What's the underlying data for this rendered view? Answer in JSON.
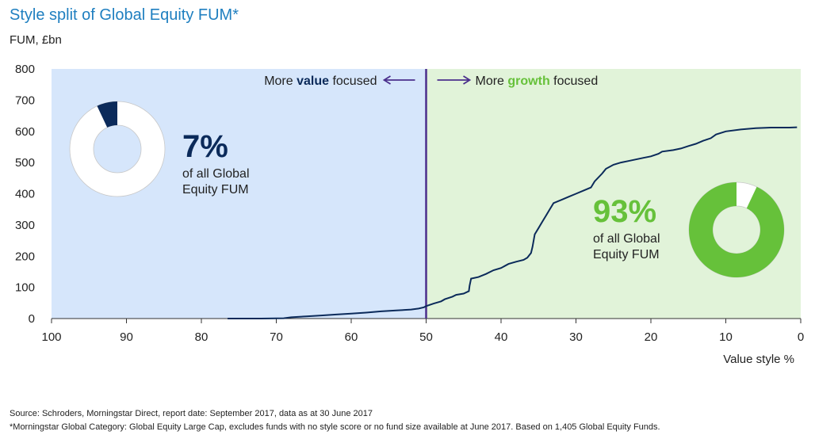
{
  "chart_data": {
    "type": "line",
    "title": "Style split of Global Equity FUM*",
    "ylabel": "FUM, £bn",
    "xlabel": "Value style %",
    "xlim": [
      100,
      0
    ],
    "ylim": [
      0,
      800
    ],
    "xticks": [
      100,
      90,
      80,
      70,
      60,
      50,
      40,
      30,
      20,
      10,
      0
    ],
    "yticks": [
      0,
      100,
      200,
      300,
      400,
      500,
      600,
      700,
      800
    ],
    "grid": false,
    "regions": [
      {
        "from": 100,
        "to": 50,
        "color": "#d6e6fb"
      },
      {
        "from": 50,
        "to": 0,
        "color": "#e1f3d9"
      }
    ],
    "divider_x": 50,
    "series": [
      {
        "color": "#0b2a5a",
        "points": [
          [
            76.5,
            0
          ],
          [
            72,
            0
          ],
          [
            69,
            1
          ],
          [
            68,
            4
          ],
          [
            66,
            7
          ],
          [
            64,
            10
          ],
          [
            62,
            13
          ],
          [
            60,
            16
          ],
          [
            58,
            19
          ],
          [
            56,
            23
          ],
          [
            54,
            26
          ],
          [
            52,
            29
          ],
          [
            51,
            32
          ],
          [
            50.3,
            36
          ],
          [
            50,
            40
          ],
          [
            49.5,
            44
          ],
          [
            49,
            48
          ],
          [
            48,
            55
          ],
          [
            47.5,
            62
          ],
          [
            46.5,
            70
          ],
          [
            46,
            76
          ],
          [
            45,
            80
          ],
          [
            44.3,
            88
          ],
          [
            44.2,
            105
          ],
          [
            44,
            128
          ],
          [
            43,
            133
          ],
          [
            42,
            143
          ],
          [
            41,
            155
          ],
          [
            40,
            162
          ],
          [
            39,
            175
          ],
          [
            38,
            182
          ],
          [
            37,
            188
          ],
          [
            36.5,
            195
          ],
          [
            36,
            210
          ],
          [
            35.8,
            230
          ],
          [
            35.5,
            270
          ],
          [
            35,
            290
          ],
          [
            34.5,
            310
          ],
          [
            34,
            330
          ],
          [
            33.5,
            350
          ],
          [
            33,
            370
          ],
          [
            32,
            380
          ],
          [
            31,
            390
          ],
          [
            30,
            400
          ],
          [
            29,
            410
          ],
          [
            28,
            420
          ],
          [
            27.5,
            440
          ],
          [
            26.5,
            465
          ],
          [
            26,
            480
          ],
          [
            25,
            493
          ],
          [
            24,
            500
          ],
          [
            23,
            505
          ],
          [
            22,
            510
          ],
          [
            21,
            515
          ],
          [
            20,
            520
          ],
          [
            19,
            528
          ],
          [
            18.5,
            535
          ],
          [
            17,
            540
          ],
          [
            16,
            545
          ],
          [
            15,
            553
          ],
          [
            14,
            560
          ],
          [
            13,
            570
          ],
          [
            12,
            578
          ],
          [
            11.3,
            590
          ],
          [
            10,
            600
          ],
          [
            8,
            606
          ],
          [
            6,
            610
          ],
          [
            4,
            612
          ],
          [
            1.5,
            612
          ],
          [
            0.5,
            613
          ]
        ]
      }
    ],
    "annotations": {
      "left_arrow": {
        "prefix": "More ",
        "bold": "value",
        "suffix": " focused",
        "arrow": "←"
      },
      "right_arrow": {
        "prefix": "More ",
        "bold": "growth",
        "suffix": " focused",
        "arrow": "→"
      }
    },
    "donuts": [
      {
        "pct_label": "7%",
        "value": 0.07,
        "line1": "of all Global",
        "line2": "Equity FUM",
        "highlight_color": "#0b2a5a",
        "rest_color": "#ffffff"
      },
      {
        "pct_label": "93%",
        "value": 0.93,
        "line1": "of all Global",
        "line2": "Equity FUM",
        "highlight_color": "#66c13a",
        "rest_color": "#ffffff"
      }
    ],
    "colors": {
      "value_accent": "#0b2a5a",
      "growth_accent": "#66c13a",
      "divider": "#4b2f8c",
      "title": "#1f7fc0"
    }
  },
  "notes": {
    "source": "Source: Schroders, Morningstar Direct, report date: September 2017, data as at 30 June 2017",
    "footnote": "*Morningstar Global Category: Global Equity Large Cap, excludes funds with no style score or no fund size available at June 2017. Based on 1,405 Global Equity Funds."
  }
}
